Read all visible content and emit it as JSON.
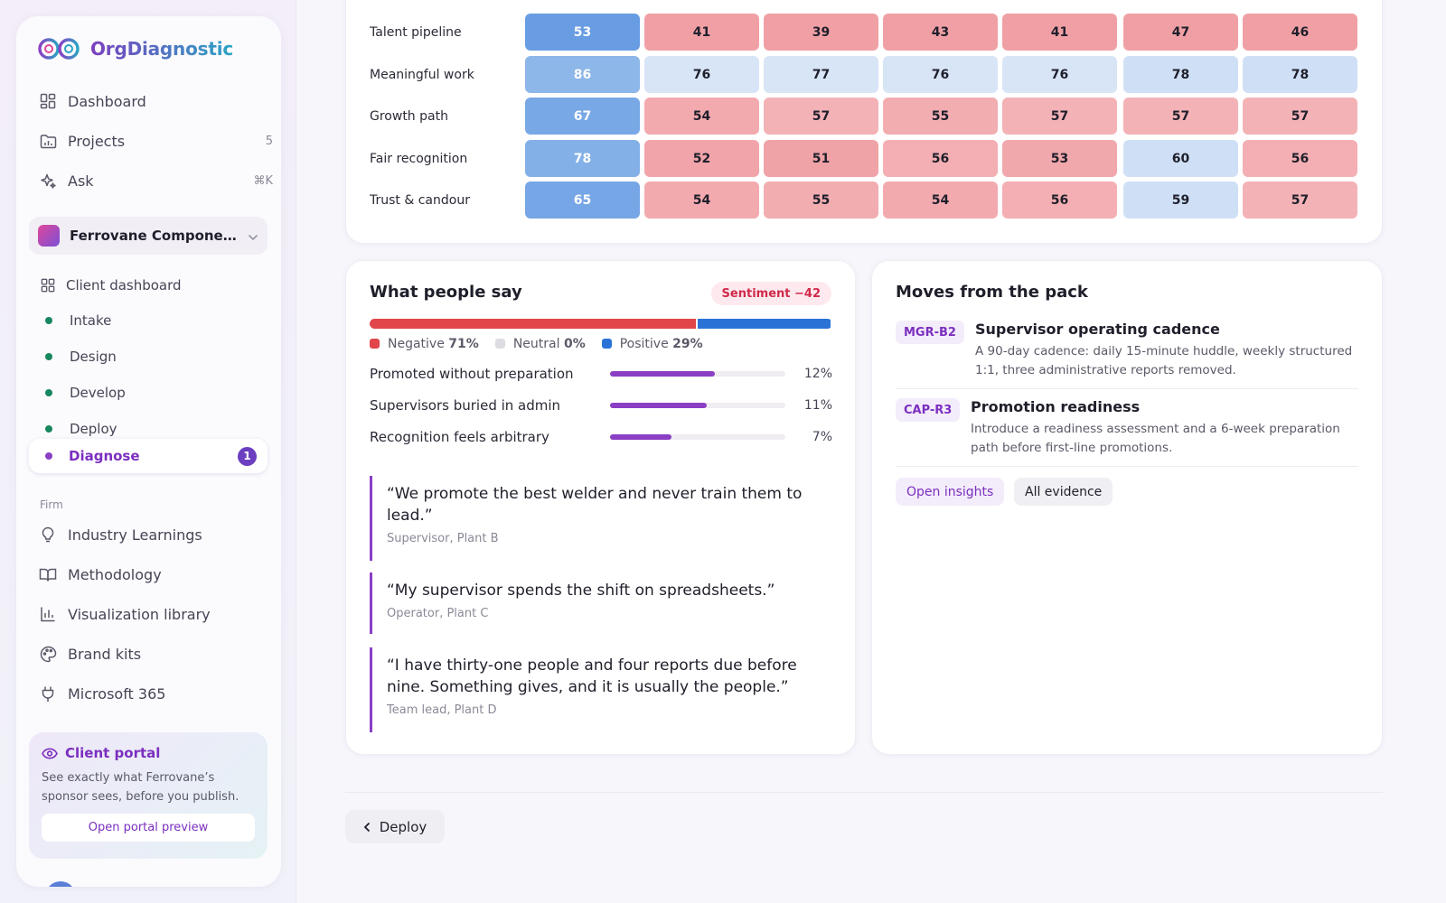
{
  "brand": {
    "name": "OrgDiagnostic"
  },
  "nav": [
    {
      "label": "Dashboard",
      "icon": "grid-icon",
      "meta": ""
    },
    {
      "label": "Projects",
      "icon": "folder-icon",
      "meta": "5"
    },
    {
      "label": "Ask",
      "icon": "sparkle-icon",
      "meta": "⌘K"
    }
  ],
  "client": {
    "name": "Ferrovane Components"
  },
  "client_nav": {
    "dashboard": "Client dashboard",
    "phases": [
      "Intake",
      "Design",
      "Develop",
      "Deploy"
    ],
    "active": {
      "label": "Diagnose",
      "badge": "1"
    }
  },
  "firm": {
    "label": "Firm",
    "items": [
      {
        "label": "Industry Learnings",
        "icon": "lightbulb-icon"
      },
      {
        "label": "Methodology",
        "icon": "book-icon"
      },
      {
        "label": "Visualization library",
        "icon": "bar-chart-icon"
      },
      {
        "label": "Brand kits",
        "icon": "palette-icon"
      },
      {
        "label": "Microsoft 365",
        "icon": "plug-icon"
      }
    ]
  },
  "portal": {
    "title": "Client portal",
    "desc": "See exactly what Ferrovane’s sponsor sees, before you publish.",
    "button": "Open portal preview"
  },
  "heatmap": {
    "rows": [
      {
        "label": "Talent pipeline",
        "values": [
          53,
          41,
          39,
          43,
          41,
          47,
          46
        ]
      },
      {
        "label": "Meaningful work",
        "values": [
          86,
          76,
          77,
          76,
          76,
          78,
          78
        ]
      },
      {
        "label": "Growth path",
        "values": [
          67,
          54,
          57,
          55,
          57,
          57,
          57
        ]
      },
      {
        "label": "Fair recognition",
        "values": [
          78,
          52,
          51,
          56,
          53,
          60,
          56
        ]
      },
      {
        "label": "Trust & candour",
        "values": [
          65,
          54,
          55,
          54,
          56,
          59,
          57
        ]
      }
    ]
  },
  "people_say": {
    "title": "What people say",
    "sentiment_badge": "Sentiment −42",
    "breakdown": [
      {
        "name": "Negative",
        "pct": 71,
        "pct_label": "71%",
        "color": "#e0464a"
      },
      {
        "name": "Neutral",
        "pct": 0,
        "pct_label": "0%",
        "color": "#dcdce2"
      },
      {
        "name": "Positive",
        "pct": 29,
        "pct_label": "29%",
        "color": "#2a72d6"
      }
    ],
    "themes": [
      {
        "label": "Promoted without preparation",
        "pct": 12,
        "pct_label": "12%"
      },
      {
        "label": "Supervisors buried in admin",
        "pct": 11,
        "pct_label": "11%"
      },
      {
        "label": "Recognition feels arbitrary",
        "pct": 7,
        "pct_label": "7%"
      }
    ],
    "quotes": [
      {
        "text": "“We promote the best welder and never train them to lead.”",
        "who": "Supervisor, Plant B"
      },
      {
        "text": "“My supervisor spends the shift on spreadsheets.”",
        "who": "Operator, Plant C"
      },
      {
        "text": "“I have thirty-one people and four reports due before nine. Something gives, and it is usually the people.”",
        "who": "Team lead, Plant D"
      }
    ]
  },
  "moves": {
    "title": "Moves from the pack",
    "items": [
      {
        "code": "MGR-B2",
        "title": "Supervisor operating cadence",
        "desc": "A 90-day cadence: daily 15-minute huddle, weekly structured 1:1, three administrative reports removed."
      },
      {
        "code": "CAP-R3",
        "title": "Promotion readiness",
        "desc": "Introduce a readiness assessment and a 6-week preparation path before first-line promotions."
      }
    ],
    "chips": [
      "Open insights",
      "All evidence"
    ]
  },
  "footer": {
    "back_label": "Deploy"
  }
}
